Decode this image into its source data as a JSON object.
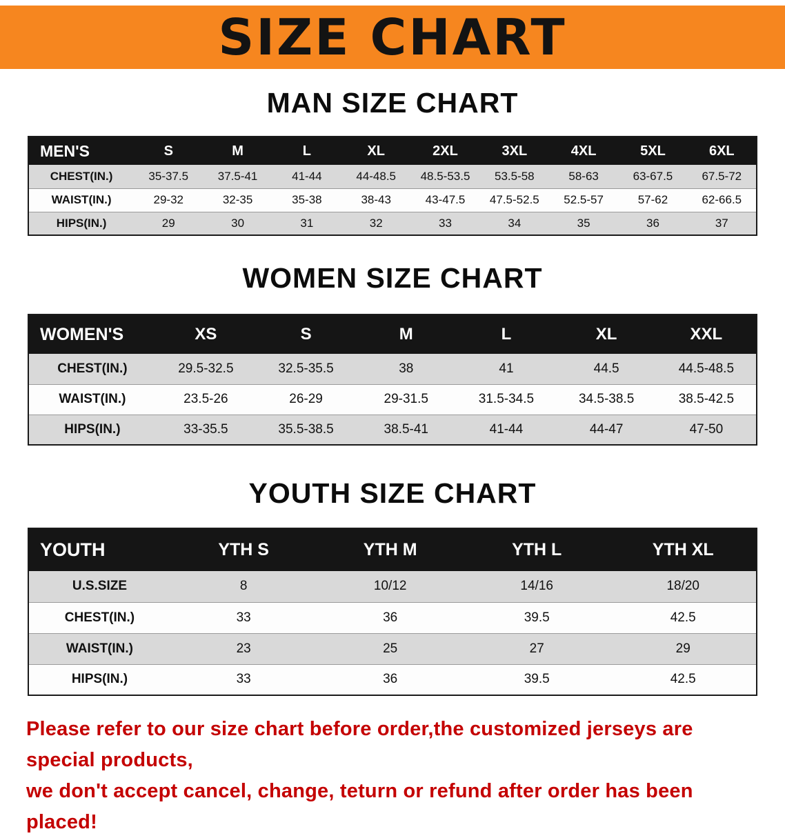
{
  "banner": {
    "title": "SIZE CHART",
    "bg_color": "#F6861F"
  },
  "colors": {
    "table_header_bg": "#151515",
    "table_alt_row_bg": "#D9D9D9",
    "disclaimer_red": "#C40000"
  },
  "sections": [
    {
      "id": "men",
      "heading": "MAN SIZE CHART",
      "table": {
        "header": [
          "MEN'S",
          "S",
          "M",
          "L",
          "XL",
          "2XL",
          "3XL",
          "4XL",
          "5XL",
          "6XL"
        ],
        "rows": [
          [
            "CHEST(IN.)",
            "35-37.5",
            "37.5-41",
            "41-44",
            "44-48.5",
            "48.5-53.5",
            "53.5-58",
            "58-63",
            "63-67.5",
            "67.5-72"
          ],
          [
            "WAIST(IN.)",
            "29-32",
            "32-35",
            "35-38",
            "38-43",
            "43-47.5",
            "47.5-52.5",
            "52.5-57",
            "57-62",
            "62-66.5"
          ],
          [
            "HIPS(IN.)",
            "29",
            "30",
            "31",
            "32",
            "33",
            "34",
            "35",
            "36",
            "37"
          ]
        ]
      }
    },
    {
      "id": "women",
      "heading": "WOMEN SIZE CHART",
      "table": {
        "header": [
          "WOMEN'S",
          "XS",
          "S",
          "M",
          "L",
          "XL",
          "XXL"
        ],
        "rows": [
          [
            "CHEST(IN.)",
            "29.5-32.5",
            "32.5-35.5",
            "38",
            "41",
            "44.5",
            "44.5-48.5"
          ],
          [
            "WAIST(IN.)",
            "23.5-26",
            "26-29",
            "29-31.5",
            "31.5-34.5",
            "34.5-38.5",
            "38.5-42.5"
          ],
          [
            "HIPS(IN.)",
            "33-35.5",
            "35.5-38.5",
            "38.5-41",
            "41-44",
            "44-47",
            "47-50"
          ]
        ]
      }
    },
    {
      "id": "youth",
      "heading": "YOUTH SIZE CHART",
      "table": {
        "header": [
          "YOUTH",
          "YTH S",
          "YTH M",
          "YTH L",
          "YTH XL"
        ],
        "rows": [
          [
            "U.S.SIZE",
            "8",
            "10/12",
            "14/16",
            "18/20"
          ],
          [
            "CHEST(IN.)",
            "33",
            "36",
            "39.5",
            "42.5"
          ],
          [
            "WAIST(IN.)",
            "23",
            "25",
            "27",
            "29"
          ],
          [
            "HIPS(IN.)",
            "33",
            "36",
            "39.5",
            "42.5"
          ]
        ]
      }
    }
  ],
  "disclaimer": {
    "line1": "Please refer to our size chart before order,the customized jerseys are special products,",
    "line2": "we don't accept cancel, change, teturn or refund after order has been placed!"
  }
}
